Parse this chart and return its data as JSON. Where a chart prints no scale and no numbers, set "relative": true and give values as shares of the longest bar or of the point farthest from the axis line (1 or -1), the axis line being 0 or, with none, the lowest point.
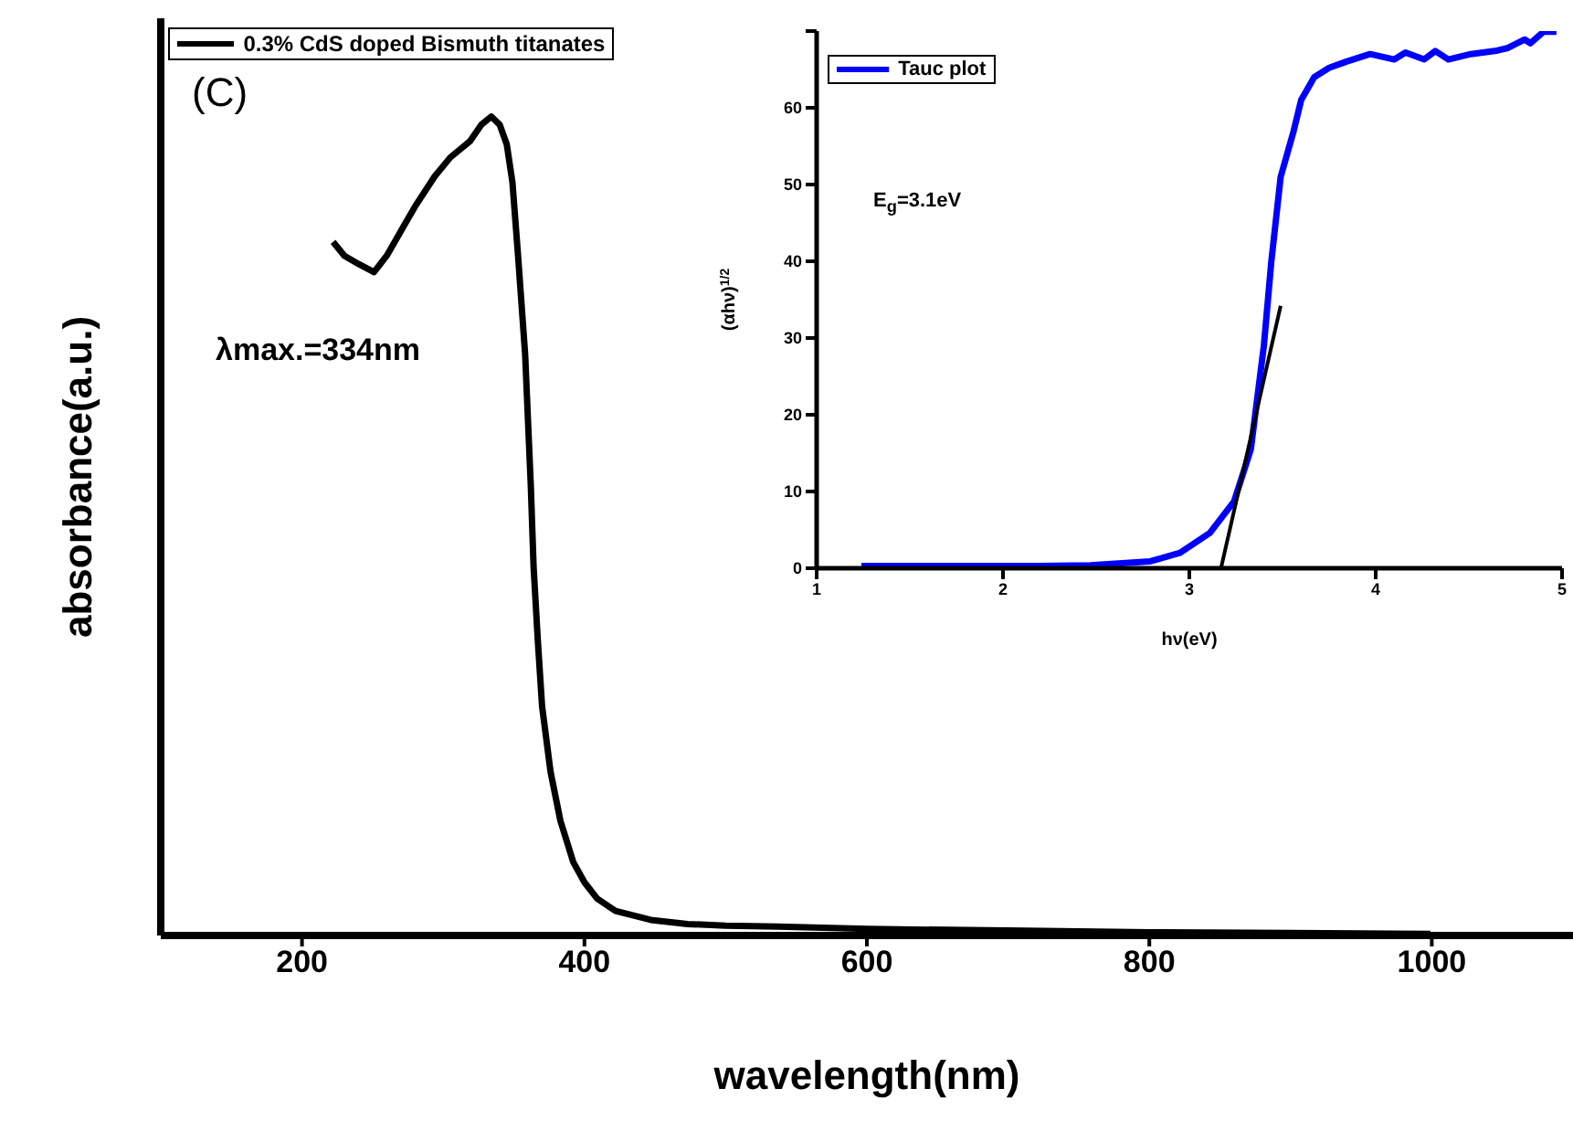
{
  "chart_data": [
    {
      "type": "line",
      "xlabel": "wavelength(nm)",
      "ylabel": "absorbance(a.u.)",
      "relative": true,
      "xlim": [
        100,
        1100
      ],
      "xticks": [
        200,
        400,
        600,
        800,
        1000
      ],
      "legend": "top left",
      "annotations": [
        "(C)",
        "λmax.=334nm"
      ],
      "series": [
        {
          "name": "0.3% CdS doped Bismuth titanates",
          "color": "#000000",
          "x": [
            222,
            230,
            240,
            251,
            260,
            270,
            280,
            294,
            305,
            319,
            327,
            334,
            340,
            345,
            349,
            353,
            358,
            362,
            364,
            367,
            370,
            376,
            383,
            392,
            400,
            409,
            422,
            447,
            473,
            500,
            537,
            600,
            700,
            800,
            900,
            999
          ],
          "values": [
            0.847,
            0.83,
            0.82,
            0.81,
            0.83,
            0.86,
            0.89,
            0.927,
            0.95,
            0.97,
            0.99,
            1.0,
            0.99,
            0.966,
            0.92,
            0.83,
            0.71,
            0.55,
            0.45,
            0.36,
            0.28,
            0.2,
            0.14,
            0.09,
            0.065,
            0.045,
            0.03,
            0.019,
            0.014,
            0.012,
            0.011,
            0.008,
            0.006,
            0.004,
            0.003,
            0.002
          ]
        }
      ]
    },
    {
      "type": "line",
      "xlabel": "hν(eV)",
      "ylabel": "(αhν)$^{1/2}$",
      "xlim": [
        1,
        5
      ],
      "xticks": [
        1,
        2,
        3,
        4,
        5
      ],
      "ylim": [
        0,
        70
      ],
      "yticks": [
        0,
        10,
        20,
        30,
        40,
        50,
        60,
        {
          "value": 70,
          "label": null
        }
      ],
      "legend": "top left",
      "annotations": [
        "E$_{g}$=3.1eV"
      ],
      "series": [
        {
          "name": "Tauc plot",
          "color": "#0000ff",
          "x": [
            1.24,
            1.8,
            2.2,
            2.47,
            2.79,
            2.95,
            3.11,
            3.24,
            3.33,
            3.4,
            3.44,
            3.49,
            3.56,
            3.6,
            3.67,
            3.75,
            3.84,
            3.97,
            4.1,
            4.16,
            4.26,
            4.32,
            4.39,
            4.51,
            4.64,
            4.71,
            4.8,
            4.83,
            4.9,
            4.97
          ],
          "values": [
            0.3,
            0.3,
            0.3,
            0.4,
            0.9,
            2,
            4.6,
            8.7,
            15.5,
            29,
            40,
            51,
            57,
            61,
            64,
            65.2,
            66,
            67,
            66.3,
            67.2,
            66.3,
            67.4,
            66.3,
            67,
            67.4,
            67.8,
            68.9,
            68.4,
            69.9,
            69.9
          ]
        },
        {
          "type": "line",
          "color": "#000000",
          "x": [
            3.17,
            3.49
          ],
          "values": [
            0,
            34.2
          ]
        }
      ]
    }
  ]
}
